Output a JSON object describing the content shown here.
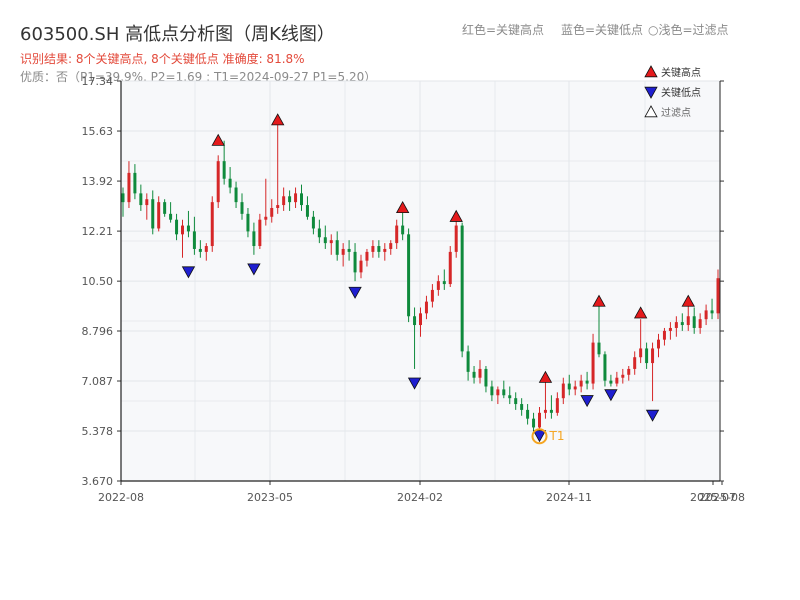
{
  "header": {
    "title": "603500.SH 高低点分析图（周K线图）",
    "result": "识别结果: 8个关键高点, 8个关键低点  准确度: 81.8%",
    "quality": "优质：否（P1=39.9%, P2=1.69 ; T1=2024-09-27 P1=5.20）"
  },
  "top_legend": {
    "red": "红色=关键高点",
    "blue": "蓝色=关键低点",
    "light": "○浅色=过滤点"
  },
  "colors": {
    "up": "#d62728",
    "down": "#0f8a3c",
    "high_marker": "#e41a1c",
    "low_marker": "#1f1fd0",
    "t1": "#f5a623",
    "plot_bg": "#f7f8fa",
    "grid": "#e3e6ea"
  },
  "chart_data": {
    "type": "candlestick",
    "title": "603500.SH 高低点分析图（周K线图）",
    "y_ticks": [
      3.67,
      5.378,
      7.087,
      8.796,
      10.5,
      12.21,
      13.92,
      15.63,
      17.34
    ],
    "y_tick_labels": [
      "3.670",
      "5.378",
      "7.087",
      "8.796",
      "10.50",
      "12.21",
      "13.92",
      "15.63",
      "17.34"
    ],
    "ylim": [
      3.67,
      17.34
    ],
    "x_ticks": [
      "2022-08",
      "2023-05",
      "2024-02",
      "2024-11",
      "2025-07",
      "2025-08"
    ],
    "legend": [
      {
        "name": "关键高点",
        "marker": "up-triangle",
        "color": "#e41a1c"
      },
      {
        "name": "关键低点",
        "marker": "down-triangle",
        "color": "#1f1fd0"
      },
      {
        "name": "过滤点",
        "marker": "up-triangle-hollow",
        "color": "#ffffff"
      }
    ],
    "annotation": "T1",
    "key_highs": [
      {
        "index": 16,
        "price": 15.1
      },
      {
        "index": 26,
        "price": 15.8
      },
      {
        "index": 47,
        "price": 12.8
      },
      {
        "index": 56,
        "price": 12.5
      },
      {
        "index": 71,
        "price": 7.0
      },
      {
        "index": 80,
        "price": 9.6
      },
      {
        "index": 87,
        "price": 9.2
      },
      {
        "index": 95,
        "price": 9.6
      }
    ],
    "key_lows": [
      {
        "index": 11,
        "price": 11.1
      },
      {
        "index": 22,
        "price": 11.2
      },
      {
        "index": 39,
        "price": 10.4
      },
      {
        "index": 49,
        "price": 7.3
      },
      {
        "index": 70,
        "price": 5.5
      },
      {
        "index": 78,
        "price": 6.7
      },
      {
        "index": 82,
        "price": 6.9
      },
      {
        "index": 89,
        "price": 6.2
      }
    ],
    "t1": {
      "index": 70,
      "price": 5.2
    },
    "candles": [
      [
        13.5,
        13.7,
        12.7,
        13.2
      ],
      [
        13.2,
        14.6,
        13.0,
        14.2
      ],
      [
        14.2,
        14.5,
        13.3,
        13.5
      ],
      [
        13.5,
        13.8,
        12.9,
        13.1
      ],
      [
        13.1,
        13.5,
        12.6,
        13.3
      ],
      [
        13.3,
        13.6,
        12.1,
        12.3
      ],
      [
        12.3,
        13.4,
        12.2,
        13.2
      ],
      [
        13.2,
        13.3,
        12.7,
        12.8
      ],
      [
        12.8,
        13.2,
        12.5,
        12.6
      ],
      [
        12.6,
        12.8,
        11.9,
        12.1
      ],
      [
        12.1,
        12.6,
        11.3,
        12.4
      ],
      [
        12.4,
        12.9,
        12.0,
        12.2
      ],
      [
        12.2,
        12.7,
        11.4,
        11.6
      ],
      [
        11.6,
        11.9,
        11.3,
        11.5
      ],
      [
        11.5,
        11.8,
        11.2,
        11.7
      ],
      [
        11.7,
        13.4,
        11.5,
        13.2
      ],
      [
        13.2,
        14.8,
        13.0,
        14.6
      ],
      [
        14.6,
        15.3,
        13.8,
        14.0
      ],
      [
        14.0,
        14.4,
        13.5,
        13.7
      ],
      [
        13.7,
        13.9,
        13.0,
        13.2
      ],
      [
        13.2,
        13.5,
        12.6,
        12.8
      ],
      [
        12.8,
        13.0,
        12.0,
        12.2
      ],
      [
        12.2,
        12.5,
        11.4,
        11.7
      ],
      [
        11.7,
        12.8,
        11.6,
        12.6
      ],
      [
        12.6,
        14.0,
        12.4,
        12.7
      ],
      [
        12.7,
        13.3,
        12.5,
        13.0
      ],
      [
        13.0,
        15.9,
        12.8,
        13.1
      ],
      [
        13.1,
        13.7,
        12.9,
        13.4
      ],
      [
        13.4,
        13.6,
        12.9,
        13.2
      ],
      [
        13.2,
        13.7,
        13.0,
        13.5
      ],
      [
        13.5,
        13.8,
        12.9,
        13.1
      ],
      [
        13.1,
        13.4,
        12.6,
        12.7
      ],
      [
        12.7,
        12.9,
        12.1,
        12.3
      ],
      [
        12.3,
        12.6,
        11.8,
        12.0
      ],
      [
        12.0,
        12.4,
        11.6,
        11.8
      ],
      [
        11.8,
        12.1,
        11.4,
        11.9
      ],
      [
        11.9,
        12.2,
        11.2,
        11.4
      ],
      [
        11.4,
        11.8,
        11.0,
        11.6
      ],
      [
        11.6,
        11.9,
        11.2,
        11.5
      ],
      [
        11.5,
        11.8,
        10.5,
        10.8
      ],
      [
        10.8,
        11.4,
        10.6,
        11.2
      ],
      [
        11.2,
        11.6,
        11.0,
        11.5
      ],
      [
        11.5,
        11.9,
        11.3,
        11.7
      ],
      [
        11.7,
        11.9,
        11.3,
        11.5
      ],
      [
        11.5,
        11.8,
        11.2,
        11.6
      ],
      [
        11.6,
        11.9,
        11.4,
        11.8
      ],
      [
        11.8,
        12.6,
        11.6,
        12.4
      ],
      [
        12.4,
        12.9,
        11.9,
        12.1
      ],
      [
        12.1,
        12.3,
        9.1,
        9.3
      ],
      [
        9.3,
        9.6,
        7.5,
        9.0
      ],
      [
        9.0,
        9.6,
        8.6,
        9.4
      ],
      [
        9.4,
        10.0,
        9.2,
        9.8
      ],
      [
        9.8,
        10.4,
        9.6,
        10.2
      ],
      [
        10.2,
        10.7,
        10.0,
        10.5
      ],
      [
        10.5,
        10.9,
        10.2,
        10.4
      ],
      [
        10.4,
        11.7,
        10.3,
        11.5
      ],
      [
        11.5,
        12.6,
        11.3,
        12.4
      ],
      [
        12.4,
        12.5,
        7.9,
        8.1
      ],
      [
        8.1,
        8.3,
        7.1,
        7.4
      ],
      [
        7.4,
        7.6,
        7.0,
        7.2
      ],
      [
        7.2,
        7.8,
        7.0,
        7.5
      ],
      [
        7.5,
        7.6,
        6.7,
        6.9
      ],
      [
        6.9,
        7.1,
        6.4,
        6.6
      ],
      [
        6.6,
        6.9,
        6.3,
        6.8
      ],
      [
        6.8,
        7.1,
        6.5,
        6.6
      ],
      [
        6.6,
        6.9,
        6.3,
        6.5
      ],
      [
        6.5,
        6.7,
        6.1,
        6.3
      ],
      [
        6.3,
        6.5,
        5.9,
        6.1
      ],
      [
        6.1,
        6.3,
        5.6,
        5.8
      ],
      [
        5.8,
        6.0,
        5.3,
        5.5
      ],
      [
        5.5,
        6.2,
        5.3,
        6.0
      ],
      [
        6.0,
        7.1,
        5.8,
        6.1
      ],
      [
        6.1,
        6.6,
        5.8,
        6.0
      ],
      [
        6.0,
        6.7,
        5.9,
        6.5
      ],
      [
        6.5,
        7.2,
        6.3,
        7.0
      ],
      [
        7.0,
        7.3,
        6.6,
        6.8
      ],
      [
        6.8,
        7.1,
        6.6,
        6.9
      ],
      [
        6.9,
        7.3,
        6.7,
        7.1
      ],
      [
        7.1,
        7.4,
        6.8,
        7.0
      ],
      [
        7.0,
        8.7,
        6.8,
        8.4
      ],
      [
        8.4,
        9.7,
        7.9,
        8.0
      ],
      [
        8.0,
        8.1,
        6.9,
        7.1
      ],
      [
        7.1,
        7.3,
        6.9,
        7.0
      ],
      [
        7.0,
        7.4,
        6.9,
        7.2
      ],
      [
        7.2,
        7.5,
        7.0,
        7.3
      ],
      [
        7.3,
        7.6,
        7.1,
        7.5
      ],
      [
        7.5,
        8.1,
        7.3,
        7.9
      ],
      [
        7.9,
        9.2,
        7.7,
        8.2
      ],
      [
        8.2,
        8.4,
        7.5,
        7.7
      ],
      [
        7.7,
        8.4,
        6.4,
        8.2
      ],
      [
        8.2,
        8.7,
        7.9,
        8.5
      ],
      [
        8.5,
        8.9,
        8.3,
        8.8
      ],
      [
        8.8,
        9.1,
        8.5,
        8.9
      ],
      [
        8.9,
        9.3,
        8.6,
        9.1
      ],
      [
        9.1,
        9.4,
        8.8,
        9.0
      ],
      [
        9.0,
        9.7,
        8.8,
        9.3
      ],
      [
        9.3,
        9.6,
        8.7,
        8.9
      ],
      [
        8.9,
        9.4,
        8.7,
        9.2
      ],
      [
        9.2,
        9.7,
        9.0,
        9.5
      ],
      [
        9.5,
        9.9,
        9.2,
        9.4
      ],
      [
        9.4,
        10.9,
        9.2,
        10.6
      ]
    ]
  }
}
